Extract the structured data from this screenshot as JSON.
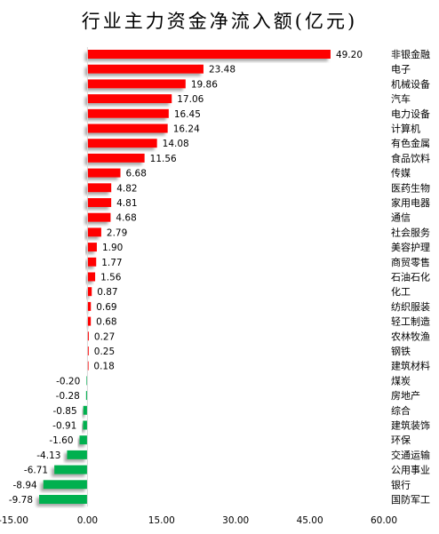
{
  "chart_data": {
    "type": "bar",
    "orientation": "horizontal",
    "title": "行业主力资金净流入额(亿元)",
    "xlim": [
      -15,
      60
    ],
    "xticks": [
      "-15.00",
      "0.00",
      "15.00",
      "30.00",
      "45.00",
      "60.00"
    ],
    "categories": [
      "非银金融",
      "电子",
      "机械设备",
      "汽车",
      "电力设备",
      "计算机",
      "有色金属",
      "食品饮料",
      "传媒",
      "医药生物",
      "家用电器",
      "通信",
      "社会服务",
      "美容护理",
      "商贸零售",
      "石油石化",
      "化工",
      "纺织服装",
      "轻工制造",
      "农林牧渔",
      "钢铁",
      "建筑材料",
      "煤炭",
      "房地产",
      "综合",
      "建筑装饰",
      "环保",
      "交通运输",
      "公用事业",
      "银行",
      "国防军工"
    ],
    "values": [
      49.2,
      23.48,
      19.86,
      17.06,
      16.45,
      16.24,
      14.08,
      11.56,
      6.68,
      4.82,
      4.81,
      4.68,
      2.79,
      1.9,
      1.77,
      1.56,
      0.87,
      0.69,
      0.68,
      0.27,
      0.25,
      0.18,
      -0.2,
      -0.28,
      -0.85,
      -0.91,
      -1.6,
      -4.13,
      -6.71,
      -8.94,
      -9.78
    ],
    "value_labels": [
      "49.20",
      "23.48",
      "19.86",
      "17.06",
      "16.45",
      "16.24",
      "14.08",
      "11.56",
      "6.68",
      "4.82",
      "4.81",
      "4.68",
      "2.79",
      "1.90",
      "1.77",
      "1.56",
      "0.87",
      "0.69",
      "0.68",
      "0.27",
      "0.25",
      "0.18",
      "-0.20",
      "-0.28",
      "-0.85",
      "-0.91",
      "-1.60",
      "-4.13",
      "-6.71",
      "-8.94",
      "-9.78"
    ],
    "colors": {
      "positive": "#ff0000",
      "negative": "#00b050",
      "shadow": "#b0b0b0"
    },
    "grid": false,
    "legend": "none"
  }
}
